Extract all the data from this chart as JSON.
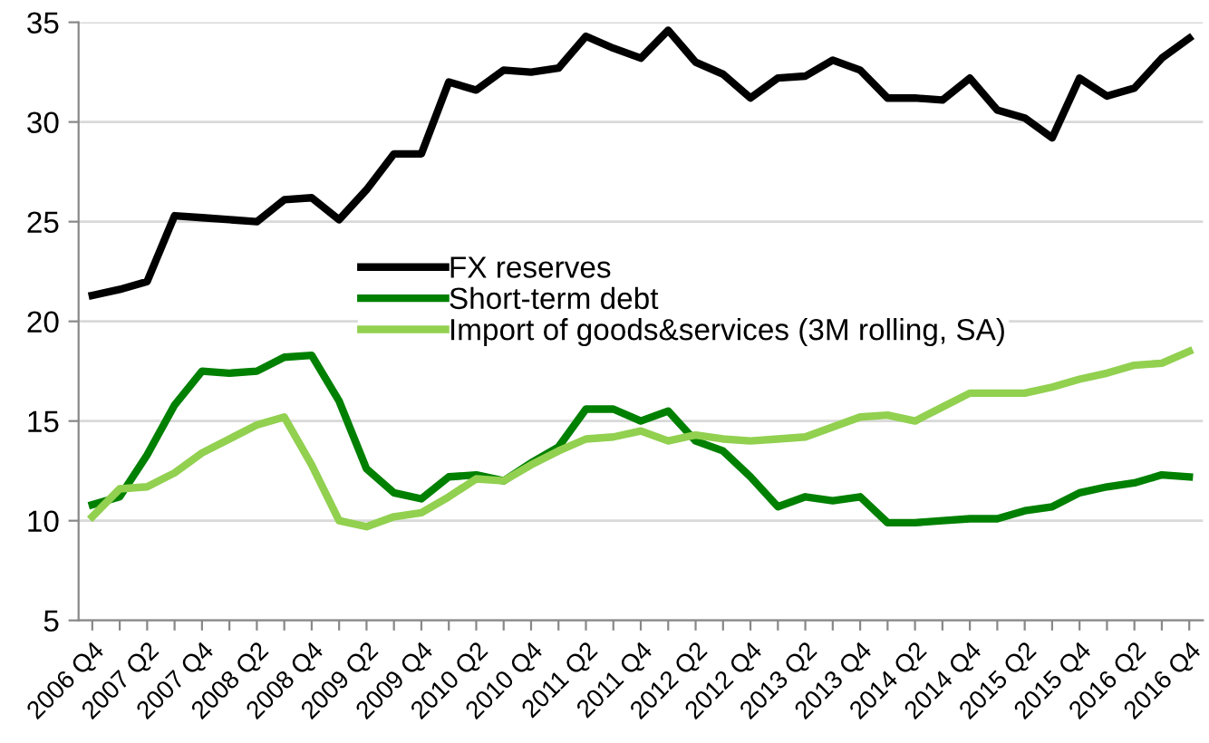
{
  "chart_data": {
    "type": "line",
    "categories": [
      "2006 Q4",
      null,
      "2007 Q2",
      null,
      "2007 Q4",
      null,
      "2008 Q2",
      null,
      "2008 Q4",
      null,
      "2009 Q2",
      null,
      "2009 Q4",
      null,
      "2010 Q2",
      null,
      "2010 Q4",
      null,
      "2011 Q2",
      null,
      "2011 Q4",
      null,
      "2012 Q2",
      null,
      "2012 Q4",
      null,
      "2013 Q2",
      null,
      "2013 Q4",
      null,
      "2014 Q2",
      null,
      "2014 Q4",
      null,
      "2015 Q2",
      null,
      "2015 Q4",
      null,
      "2016 Q2",
      null,
      "2016 Q4"
    ],
    "series": [
      {
        "name": "FX reserves",
        "color": "#000000",
        "values": [
          21.3,
          21.6,
          22.0,
          25.3,
          25.2,
          25.1,
          25.0,
          26.1,
          26.2,
          25.1,
          26.6,
          28.4,
          28.4,
          32.0,
          31.6,
          32.6,
          32.5,
          32.7,
          34.3,
          33.7,
          33.2,
          34.6,
          33.0,
          32.4,
          31.2,
          32.2,
          32.3,
          33.1,
          32.6,
          31.2,
          31.2,
          31.1,
          32.2,
          30.6,
          30.2,
          29.2,
          32.2,
          31.3,
          31.7,
          33.2,
          34.2
        ]
      },
      {
        "name": "Short-term debt",
        "color": "#008000",
        "values": [
          10.8,
          11.2,
          13.3,
          15.8,
          17.5,
          17.4,
          17.5,
          18.2,
          18.3,
          16.0,
          12.6,
          11.4,
          11.1,
          12.2,
          12.3,
          12.0,
          12.9,
          13.7,
          15.6,
          15.6,
          15.0,
          15.5,
          14.0,
          13.5,
          12.2,
          10.7,
          11.2,
          11.0,
          11.2,
          9.9,
          9.9,
          10.0,
          10.1,
          10.1,
          10.5,
          10.7,
          11.4,
          11.7,
          11.9,
          12.3,
          12.2
        ]
      },
      {
        "name": "Import of goods&services (3M rolling, SA)",
        "color": "#92d050",
        "values": [
          10.2,
          11.6,
          11.7,
          12.4,
          13.4,
          14.1,
          14.8,
          15.2,
          12.8,
          10.0,
          9.7,
          10.2,
          10.4,
          11.2,
          12.1,
          12.0,
          12.8,
          13.5,
          14.1,
          14.2,
          14.5,
          14.0,
          14.3,
          14.1,
          14.0,
          14.1,
          14.2,
          14.7,
          15.2,
          15.3,
          15.0,
          15.7,
          16.4,
          16.4,
          16.4,
          16.7,
          17.1,
          17.4,
          17.8,
          17.9,
          18.5
        ]
      }
    ],
    "ylim": [
      5,
      35
    ],
    "yticks": [
      5,
      10,
      15,
      20,
      25,
      30,
      35
    ],
    "grid": "y",
    "legend": "top left",
    "line_style": "solid",
    "marker": "none"
  }
}
